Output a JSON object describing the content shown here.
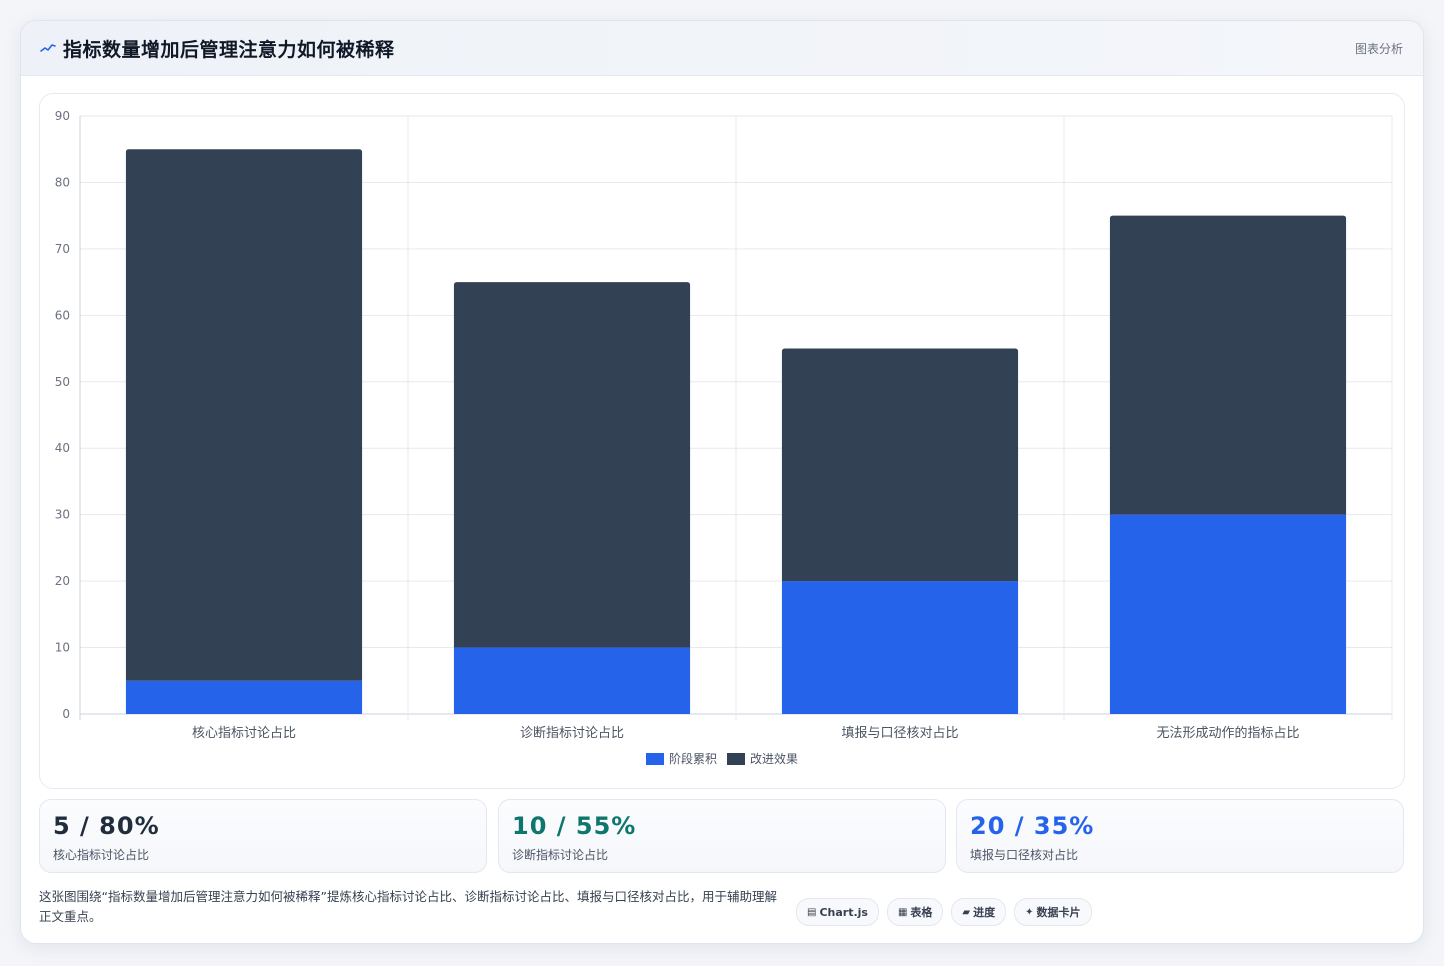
{
  "header": {
    "title": "指标数量增加后管理注意力如何被稀释",
    "tag": "图表分析"
  },
  "chart_data": {
    "type": "bar",
    "stacked": true,
    "categories": [
      "核心指标讨论占比",
      "诊断指标讨论占比",
      "填报与口径核对占比",
      "无法形成动作的指标占比"
    ],
    "series": [
      {
        "name": "阶段累积",
        "color": "#2563eb",
        "values": [
          5,
          10,
          20,
          30
        ]
      },
      {
        "name": "改进效果",
        "color": "#334155",
        "values": [
          80,
          55,
          35,
          45
        ]
      }
    ],
    "ylim": [
      0,
      90
    ],
    "yticks": [
      0,
      10,
      20,
      30,
      40,
      50,
      60,
      70,
      80,
      90
    ],
    "grid": true,
    "legend_position": "bottom"
  },
  "stats": [
    {
      "value": "5 / 80%",
      "label": "核心指标讨论占比",
      "color": "#1f2d3d"
    },
    {
      "value": "10 / 55%",
      "label": "诊断指标讨论占比",
      "color": "#0f766e"
    },
    {
      "value": "20 / 35%",
      "label": "填报与口径核对占比",
      "color": "#2563eb"
    }
  ],
  "footer": {
    "note": "这张图围绕“指标数量增加后管理注意力如何被稀释”提炼核心指标讨论占比、诊断指标讨论占比、填报与口径核对占比，用于辅助理解正文重点。",
    "chips": [
      {
        "icon": "chart-icon",
        "glyph": "▤",
        "label": "Chart.js"
      },
      {
        "icon": "table-icon",
        "glyph": "▦",
        "label": "表格"
      },
      {
        "icon": "progress-icon",
        "glyph": "▰",
        "label": "进度"
      },
      {
        "icon": "sparkle-icon",
        "glyph": "✦",
        "label": "数据卡片"
      }
    ]
  }
}
